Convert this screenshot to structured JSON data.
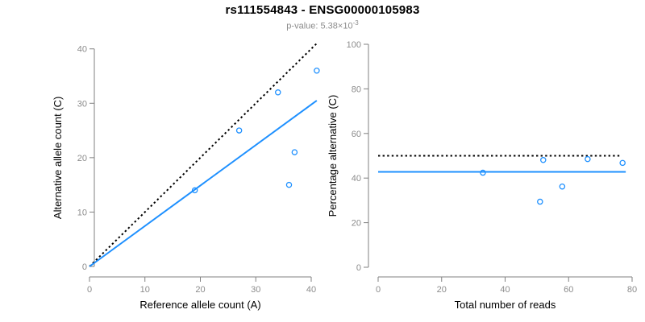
{
  "header": {
    "title": "rs111554843 - ENSG00000105983",
    "p_value_text": "p-value: 5.38×10",
    "p_value_exponent": "-3"
  },
  "style": {
    "background": "#FFFFFF",
    "accent_blue": "#1E90FF",
    "dotted_line_color": "#000000",
    "axis_line_color": "#808080",
    "tick_label_color": "#8C8C8C",
    "axis_title_color": "#000000",
    "title_color": "#000000",
    "subtitle_color": "#8C8C8C"
  },
  "chart_data": [
    {
      "type": "scatter",
      "name": "allele-counts",
      "title": "",
      "xlabel": "Reference allele count (A)",
      "ylabel": "Alternative allele count (C)",
      "xlim": [
        0,
        41.5
      ],
      "ylim": [
        0,
        41.5
      ],
      "xticks": [
        0,
        10,
        20,
        30,
        40
      ],
      "yticks": [
        0,
        10,
        20,
        30,
        40
      ],
      "grid": false,
      "legend": false,
      "marker": "open-circle",
      "points": [
        [
          19,
          14
        ],
        [
          27,
          25
        ],
        [
          34,
          32
        ],
        [
          36,
          15
        ],
        [
          37,
          21
        ],
        [
          41,
          36
        ]
      ],
      "lines": [
        {
          "name": "identity-line-1to1",
          "style": "dotted",
          "color": "#000000",
          "from": [
            0,
            0
          ],
          "to": [
            41,
            41
          ]
        },
        {
          "name": "fitted-ratio-line",
          "style": "solid",
          "color": "#1E90FF",
          "from": [
            0,
            0
          ],
          "to": [
            41,
            30.5
          ]
        }
      ]
    },
    {
      "type": "scatter",
      "name": "percentage-vs-reads",
      "title": "",
      "xlabel": "Total number of reads",
      "ylabel": "Percentage alternative (C)",
      "xlim": [
        0,
        81
      ],
      "ylim": [
        0,
        100
      ],
      "xticks": [
        0,
        20,
        40,
        60,
        80
      ],
      "yticks": [
        0,
        20,
        40,
        60,
        80,
        100
      ],
      "grid": false,
      "legend": false,
      "marker": "open-circle",
      "points": [
        [
          33,
          42.4
        ],
        [
          51,
          29.4
        ],
        [
          52,
          48.1
        ],
        [
          58,
          36.2
        ],
        [
          66,
          48.5
        ],
        [
          77,
          46.8
        ]
      ],
      "lines": [
        {
          "name": "expected-50-percent-line",
          "style": "dotted",
          "color": "#000000",
          "from": [
            0,
            50
          ],
          "to": [
            76,
            50
          ]
        },
        {
          "name": "mean-percentage-line",
          "style": "solid",
          "color": "#1E90FF",
          "from": [
            0,
            42.8
          ],
          "to": [
            78,
            42.8
          ]
        }
      ]
    }
  ]
}
